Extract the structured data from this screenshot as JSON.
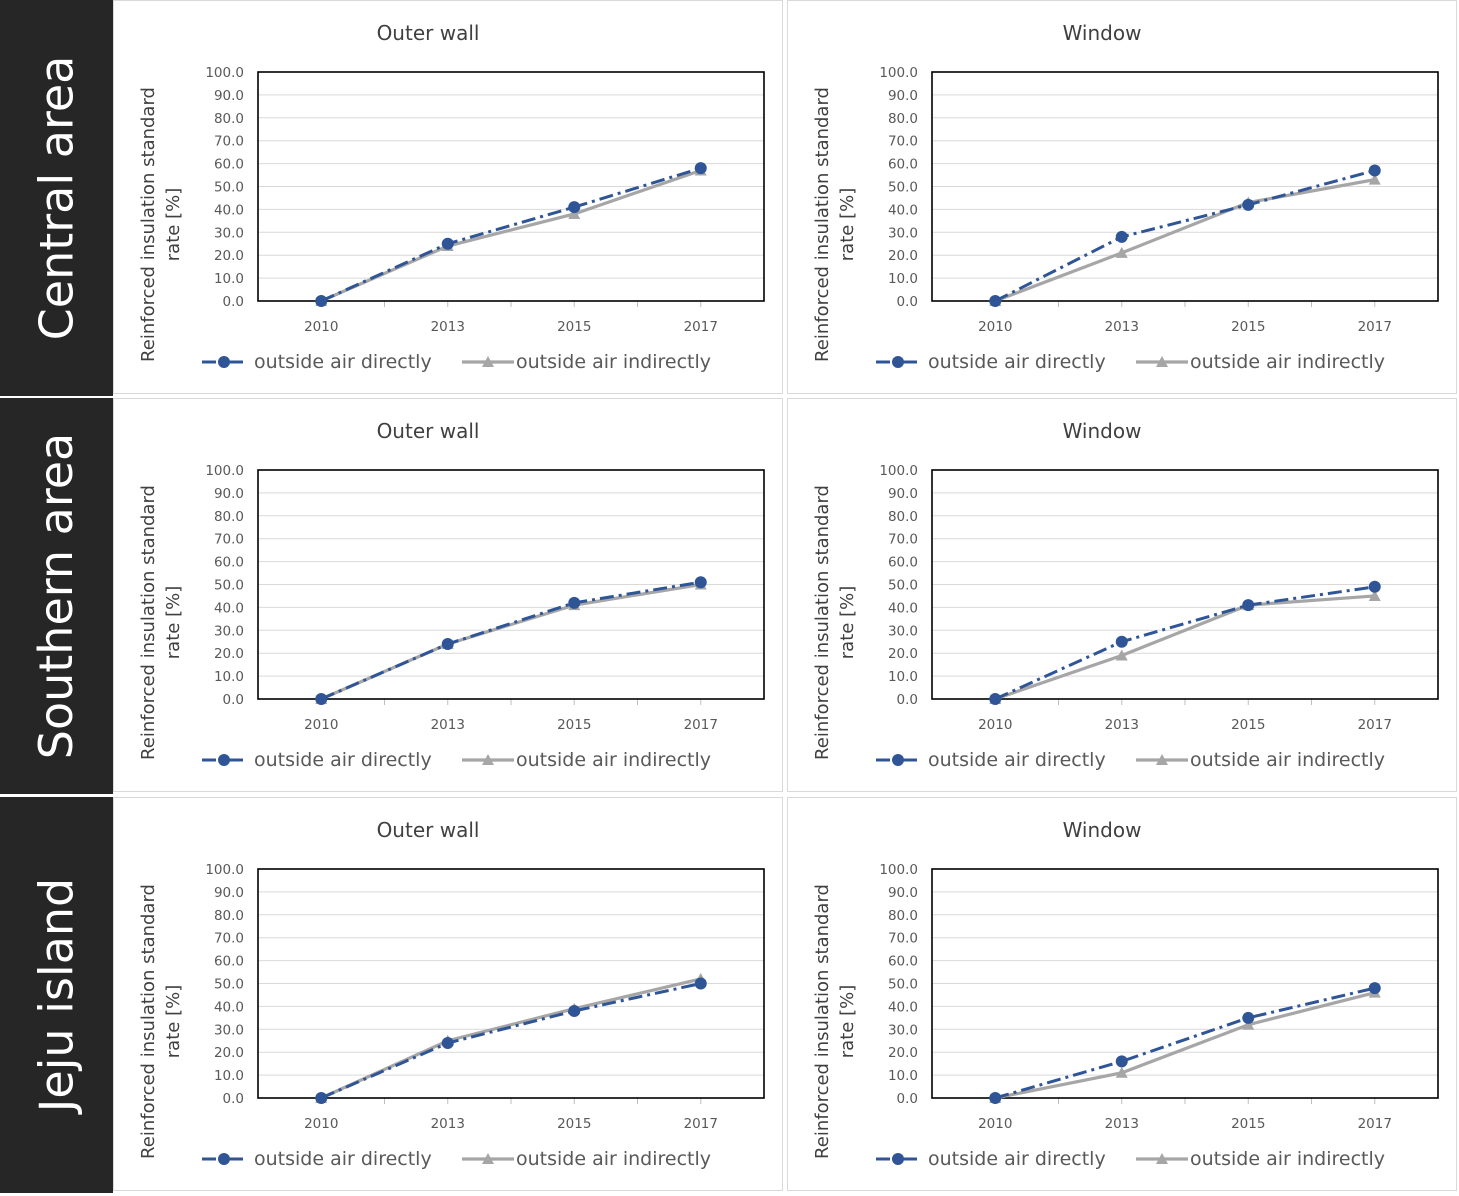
{
  "colors": {
    "directly": "#2f5597",
    "indirectly": "#a6a6a6",
    "row_label_bg": "#262626"
  },
  "rows": [
    {
      "label": "Central area",
      "panels": [
        {
          "chart_data": {
            "type": "line",
            "title": "Outer wall",
            "ylabel": "Reinforced insulation standard rate [%]",
            "ylim": [
              0,
              100
            ],
            "yticks": [
              "0.0",
              "10.0",
              "20.0",
              "30.0",
              "40.0",
              "50.0",
              "60.0",
              "70.0",
              "80.0",
              "90.0",
              "100.0"
            ],
            "categories": [
              "2010",
              "2013",
              "2015",
              "2017"
            ],
            "series": [
              {
                "name": "outside air directly",
                "values": [
                  0,
                  25,
                  41,
                  58
                ]
              },
              {
                "name": "outside air indirectly",
                "values": [
                  0,
                  24,
                  38,
                  57
                ]
              }
            ]
          }
        },
        {
          "chart_data": {
            "type": "line",
            "title": "Window",
            "ylabel": "Reinforced insulation standard rate [%]",
            "ylim": [
              0,
              100
            ],
            "yticks": [
              "0.0",
              "10.0",
              "20.0",
              "30.0",
              "40.0",
              "50.0",
              "60.0",
              "70.0",
              "80.0",
              "90.0",
              "100.0"
            ],
            "categories": [
              "2010",
              "2013",
              "2015",
              "2017"
            ],
            "series": [
              {
                "name": "outside air directly",
                "values": [
                  0,
                  28,
                  42,
                  57
                ]
              },
              {
                "name": "outside air indirectly",
                "values": [
                  0,
                  21,
                  43,
                  53
                ]
              }
            ]
          }
        }
      ]
    },
    {
      "label": "Southern area",
      "panels": [
        {
          "chart_data": {
            "type": "line",
            "title": "Outer wall",
            "ylabel": "Reinforced insulation standard rate [%]",
            "ylim": [
              0,
              100
            ],
            "yticks": [
              "0.0",
              "10.0",
              "20.0",
              "30.0",
              "40.0",
              "50.0",
              "60.0",
              "70.0",
              "80.0",
              "90.0",
              "100.0"
            ],
            "categories": [
              "2010",
              "2013",
              "2015",
              "2017"
            ],
            "series": [
              {
                "name": "outside air directly",
                "values": [
                  0,
                  24,
                  42,
                  51
                ]
              },
              {
                "name": "outside air indirectly",
                "values": [
                  0,
                  24,
                  41,
                  50
                ]
              }
            ]
          }
        },
        {
          "chart_data": {
            "type": "line",
            "title": "Window",
            "ylabel": "Reinforced insulation standard rate [%]",
            "ylim": [
              0,
              100
            ],
            "yticks": [
              "0.0",
              "10.0",
              "20.0",
              "30.0",
              "40.0",
              "50.0",
              "60.0",
              "70.0",
              "80.0",
              "90.0",
              "100.0"
            ],
            "categories": [
              "2010",
              "2013",
              "2015",
              "2017"
            ],
            "series": [
              {
                "name": "outside air directly",
                "values": [
                  0,
                  25,
                  41,
                  49
                ]
              },
              {
                "name": "outside air indirectly",
                "values": [
                  0,
                  19,
                  41,
                  45
                ]
              }
            ]
          }
        }
      ]
    },
    {
      "label": "Jeju island",
      "panels": [
        {
          "chart_data": {
            "type": "line",
            "title": "Outer wall",
            "ylabel": "Reinforced insulation standard rate [%]",
            "ylim": [
              0,
              100
            ],
            "yticks": [
              "0.0",
              "10.0",
              "20.0",
              "30.0",
              "40.0",
              "50.0",
              "60.0",
              "70.0",
              "80.0",
              "90.0",
              "100.0"
            ],
            "categories": [
              "2010",
              "2013",
              "2015",
              "2017"
            ],
            "series": [
              {
                "name": "outside air directly",
                "values": [
                  0,
                  24,
                  38,
                  50
                ]
              },
              {
                "name": "outside air indirectly",
                "values": [
                  0,
                  25,
                  39,
                  52
                ]
              }
            ]
          }
        },
        {
          "chart_data": {
            "type": "line",
            "title": "Window",
            "ylabel": "Reinforced insulation standard rate [%]",
            "ylim": [
              0,
              100
            ],
            "yticks": [
              "0.0",
              "10.0",
              "20.0",
              "30.0",
              "40.0",
              "50.0",
              "60.0",
              "70.0",
              "80.0",
              "90.0",
              "100.0"
            ],
            "categories": [
              "2010",
              "2013",
              "2015",
              "2017"
            ],
            "series": [
              {
                "name": "outside air directly",
                "values": [
                  0,
                  16,
                  35,
                  48
                ]
              },
              {
                "name": "outside air indirectly",
                "values": [
                  0,
                  11,
                  32,
                  46
                ]
              }
            ]
          }
        }
      ]
    }
  ]
}
